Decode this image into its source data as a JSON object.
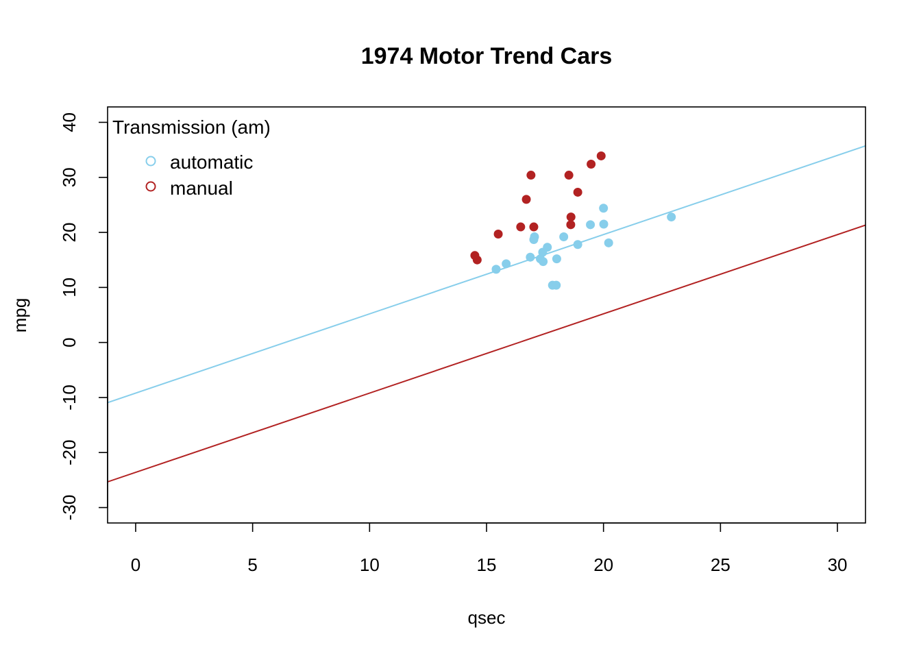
{
  "chart_data": {
    "type": "scatter",
    "title": "1974 Motor Trend Cars",
    "xlabel": "qsec",
    "ylabel": "mpg",
    "xlim": [
      -1.2,
      31.2
    ],
    "ylim": [
      -32.8,
      42.8
    ],
    "xticks": [
      0,
      5,
      10,
      15,
      20,
      25,
      30
    ],
    "yticks": [
      -30,
      -20,
      -10,
      0,
      10,
      20,
      30,
      40
    ],
    "grid": false,
    "legend": {
      "title": "Transmission (am)",
      "position": "top-left"
    },
    "series": [
      {
        "name": "automatic",
        "color": "#87CEEB",
        "points": [
          [
            19.44,
            21.4
          ],
          [
            17.02,
            18.7
          ],
          [
            20.22,
            18.1
          ],
          [
            15.84,
            14.3
          ],
          [
            20.0,
            24.4
          ],
          [
            22.9,
            22.8
          ],
          [
            18.3,
            19.2
          ],
          [
            18.9,
            17.8
          ],
          [
            17.4,
            16.4
          ],
          [
            17.6,
            17.3
          ],
          [
            18.0,
            15.2
          ],
          [
            17.98,
            10.4
          ],
          [
            17.82,
            10.4
          ],
          [
            17.42,
            14.7
          ],
          [
            20.01,
            21.5
          ],
          [
            16.87,
            15.5
          ],
          [
            17.3,
            15.2
          ],
          [
            15.41,
            13.3
          ],
          [
            17.05,
            19.2
          ]
        ],
        "fit": {
          "intercept": -9.2,
          "slope": 1.44
        }
      },
      {
        "name": "manual",
        "color": "#B22222",
        "points": [
          [
            16.46,
            21.0
          ],
          [
            17.02,
            21.0
          ],
          [
            18.61,
            22.8
          ],
          [
            19.47,
            32.4
          ],
          [
            18.52,
            30.4
          ],
          [
            19.9,
            33.9
          ],
          [
            18.9,
            27.3
          ],
          [
            16.7,
            26.0
          ],
          [
            16.9,
            30.4
          ],
          [
            14.5,
            15.8
          ],
          [
            15.5,
            19.7
          ],
          [
            14.6,
            15.0
          ],
          [
            18.6,
            21.4
          ]
        ],
        "fit": {
          "intercept": -23.6,
          "slope": 1.44
        }
      }
    ]
  }
}
